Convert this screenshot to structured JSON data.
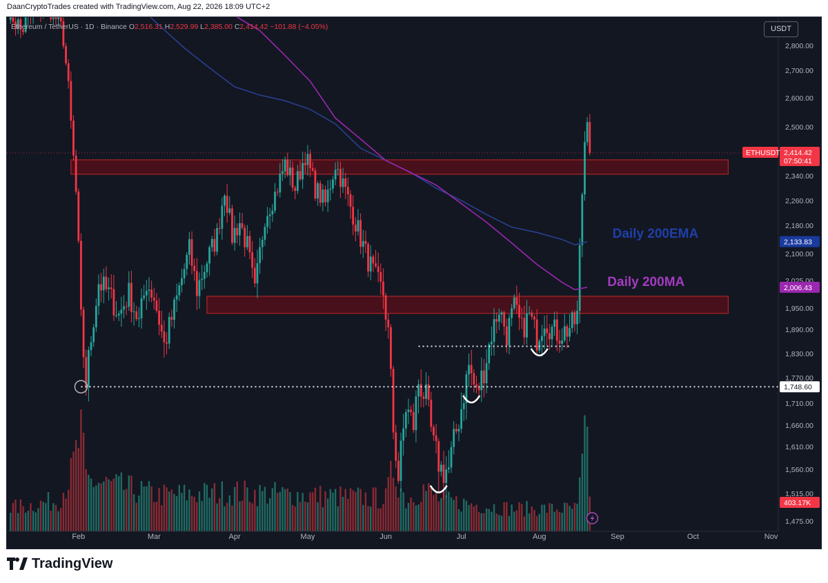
{
  "header": {
    "credit": "DaanCryptoTrades created with TradingView.com, Aug 22, 2026 18:09 UTC+2"
  },
  "legend": {
    "symbol": "Ethereum / TetherUS · 1D · Binance",
    "open_label": "O",
    "open": "2,516.31",
    "high_label": "H",
    "high": "2,529.99",
    "low_label": "L",
    "low": "2,385.00",
    "close_label": "C",
    "close": "2,414.42",
    "change": "−101.88 (−4.05%)"
  },
  "currency_button": "USDT",
  "brand": {
    "name": "TradingView"
  },
  "colors": {
    "background": "#131722",
    "up": "#26a69a",
    "down": "#f23645",
    "ema": "#1e3a8a",
    "ma": "#9c27b0",
    "zone_fill": "#5a0f1a",
    "zone_border": "#c62828",
    "label_ema": "#1f3fa8",
    "label_ma": "#a33bc0"
  },
  "chart_data": {
    "type": "candlestick",
    "symbol": "ETHUSDT",
    "timeframe": "1D",
    "ylim": [
      1440,
      2900
    ],
    "y_ticks": [
      "2,800.00",
      "2,700.00",
      "2,600.00",
      "2,500.00",
      "2,340.00",
      "2,260.00",
      "2,180.00",
      "2,100.00",
      "2,025.00",
      "1,950.00",
      "1,890.00",
      "1,830.00",
      "1,770.00",
      "1,710.00",
      "1,660.00",
      "1,610.00",
      "1,560.00",
      "1,515.00",
      "1,475.00"
    ],
    "y_tick_values": [
      2800,
      2700,
      2600,
      2500,
      2340,
      2260,
      2180,
      2100,
      2025,
      1950,
      1890,
      1830,
      1770,
      1710,
      1660,
      1610,
      1560,
      1515,
      1475
    ],
    "x_ticks": [
      "Feb",
      "Mar",
      "Apr",
      "May",
      "Jun",
      "Jul",
      "Aug",
      "Sep",
      "Oct",
      "Nov"
    ],
    "x_tick_days": [
      28,
      58,
      90,
      119,
      150,
      180,
      211,
      242,
      272,
      303
    ],
    "last_day": 234,
    "last_price_label": {
      "symbol": "ETHUSDT",
      "price": "2,414.42",
      "countdown": "07:50:41"
    },
    "price_labels": [
      {
        "name": "ema-value",
        "value": 2133.83,
        "text": "2,133.83"
      },
      {
        "name": "ma-value",
        "value": 2006.43,
        "text": "2,006.43"
      },
      {
        "name": "support-value",
        "value": 1748.6,
        "text": "1,748.60"
      }
    ],
    "volume_label": "403.17K",
    "ohlc_keypoints": [
      [
        0,
        2960
      ],
      [
        5,
        2860
      ],
      [
        10,
        2930
      ],
      [
        16,
        2980
      ],
      [
        22,
        2840
      ],
      [
        25,
        2500
      ],
      [
        27,
        2280
      ],
      [
        29,
        1900
      ],
      [
        31,
        1760
      ],
      [
        33,
        1870
      ],
      [
        36,
        2020
      ],
      [
        40,
        1990
      ],
      [
        44,
        1930
      ],
      [
        48,
        1990
      ],
      [
        52,
        1910
      ],
      [
        55,
        2020
      ],
      [
        58,
        1980
      ],
      [
        62,
        1850
      ],
      [
        65,
        1920
      ],
      [
        69,
        2030
      ],
      [
        72,
        2110
      ],
      [
        75,
        2000
      ],
      [
        79,
        2080
      ],
      [
        83,
        2150
      ],
      [
        86,
        2300
      ],
      [
        89,
        2150
      ],
      [
        92,
        2190
      ],
      [
        95,
        2120
      ],
      [
        98,
        1990
      ],
      [
        102,
        2210
      ],
      [
        106,
        2280
      ],
      [
        110,
        2380
      ],
      [
        114,
        2300
      ],
      [
        118,
        2410
      ],
      [
        122,
        2300
      ],
      [
        126,
        2250
      ],
      [
        130,
        2380
      ],
      [
        134,
        2290
      ],
      [
        138,
        2190
      ],
      [
        142,
        2100
      ],
      [
        146,
        2030
      ],
      [
        149,
        1990
      ],
      [
        151,
        1880
      ],
      [
        153,
        1650
      ],
      [
        155,
        1545
      ],
      [
        158,
        1700
      ],
      [
        161,
        1660
      ],
      [
        163,
        1760
      ],
      [
        166,
        1720
      ],
      [
        169,
        1610
      ],
      [
        172,
        1560
      ],
      [
        175,
        1560
      ],
      [
        177,
        1620
      ],
      [
        180,
        1700
      ],
      [
        183,
        1800
      ],
      [
        186,
        1730
      ],
      [
        189,
        1790
      ],
      [
        192,
        1880
      ],
      [
        195,
        1950
      ],
      [
        198,
        1880
      ],
      [
        201,
        1950
      ],
      [
        204,
        1890
      ],
      [
        207,
        1930
      ],
      [
        210,
        1870
      ],
      [
        213,
        1920
      ],
      [
        216,
        1890
      ],
      [
        219,
        1880
      ],
      [
        222,
        1890
      ],
      [
        225,
        1910
      ],
      [
        226,
        1930
      ],
      [
        228,
        2280
      ],
      [
        229,
        2450
      ],
      [
        230,
        2516
      ],
      [
        231,
        2414.42
      ]
    ],
    "volume_envelope": [
      [
        0,
        0.22
      ],
      [
        20,
        0.3
      ],
      [
        25,
        0.55
      ],
      [
        29,
        0.95
      ],
      [
        31,
        0.5
      ],
      [
        60,
        0.35
      ],
      [
        90,
        0.38
      ],
      [
        150,
        0.32
      ],
      [
        153,
        0.62
      ],
      [
        158,
        0.3
      ],
      [
        165,
        0.42
      ],
      [
        172,
        0.3
      ],
      [
        200,
        0.22
      ],
      [
        226,
        0.22
      ],
      [
        229,
        0.85
      ],
      [
        230,
        0.9
      ],
      [
        231,
        0.4
      ]
    ],
    "moving_averages": [
      {
        "name": "Daily 200EMA",
        "points": [
          [
            50,
            2980
          ],
          [
            58,
            2900
          ],
          [
            70,
            2790
          ],
          [
            80,
            2710
          ],
          [
            90,
            2640
          ],
          [
            100,
            2610
          ],
          [
            110,
            2590
          ],
          [
            120,
            2560
          ],
          [
            130,
            2510
          ],
          [
            140,
            2430
          ],
          [
            150,
            2390
          ],
          [
            160,
            2350
          ],
          [
            170,
            2300
          ],
          [
            180,
            2260
          ],
          [
            190,
            2215
          ],
          [
            200,
            2175
          ],
          [
            210,
            2160
          ],
          [
            220,
            2140
          ],
          [
            225,
            2125
          ],
          [
            230,
            2133.83
          ]
        ]
      },
      {
        "name": "Daily 200MA",
        "points": [
          [
            80,
            2980
          ],
          [
            100,
            2860
          ],
          [
            110,
            2760
          ],
          [
            120,
            2660
          ],
          [
            130,
            2530
          ],
          [
            140,
            2460
          ],
          [
            150,
            2390
          ],
          [
            160,
            2350
          ],
          [
            170,
            2310
          ],
          [
            180,
            2250
          ],
          [
            190,
            2190
          ],
          [
            200,
            2130
          ],
          [
            210,
            2070
          ],
          [
            220,
            2020
          ],
          [
            225,
            2000
          ],
          [
            230,
            2006.43
          ]
        ]
      }
    ],
    "zones": [
      {
        "name": "resistance-zone",
        "from_day": 25,
        "to_day": 275,
        "low": 2345,
        "high": 2392
      },
      {
        "name": "support-zone",
        "from_day": 79,
        "to_day": 275,
        "low": 1935,
        "high": 1982
      }
    ],
    "horizontal_lines": [
      {
        "name": "support-line-1748",
        "from_day": 29,
        "to_day": 275,
        "value": 1748.6
      },
      {
        "name": "range-low-line",
        "from_day": 163,
        "to_day": 223,
        "value": 1848
      }
    ],
    "arcs": [
      {
        "name": "arc-bottom-june",
        "day": 171,
        "value": 1522
      },
      {
        "name": "arc-higher-low-july",
        "day": 184,
        "value": 1718
      },
      {
        "name": "arc-higher-low-aug",
        "day": 211,
        "value": 1832
      }
    ],
    "annotations": [
      {
        "name": "label-200ema",
        "text": "Daily 200EMA",
        "day": 240,
        "value": 2145
      },
      {
        "name": "label-200ma",
        "text": "Daily 200MA",
        "day": 238,
        "value": 2010
      }
    ]
  }
}
